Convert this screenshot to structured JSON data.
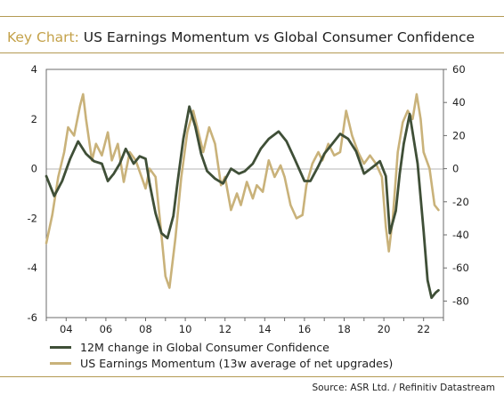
{
  "header": {
    "prefix": "Key Chart:",
    "title": "US Earnings Momentum vs Global Consumer Confidence"
  },
  "source": "Source: ASR Ltd. / Refinitiv Datastream",
  "colors": {
    "rule": "#b49a53",
    "title_prefix": "#c4a24a",
    "consumer_confidence": "#3f4f37",
    "earnings_momentum": "#c9b27a",
    "zero_line": "#b4b4b4"
  },
  "chart_data": {
    "type": "line",
    "x_range": [
      2003.0,
      2023.0
    ],
    "x_ticks": [
      "04",
      "06",
      "08",
      "10",
      "12",
      "14",
      "16",
      "18",
      "20",
      "22"
    ],
    "x_tick_values": [
      2004,
      2006,
      2008,
      2010,
      2012,
      2014,
      2016,
      2018,
      2020,
      2022
    ],
    "y_left": {
      "ylim": [
        -6,
        4
      ],
      "ticks": [
        "4",
        "2",
        "0",
        "-2",
        "-4",
        "-6"
      ],
      "tick_values": [
        4,
        2,
        0,
        -2,
        -4,
        -6
      ]
    },
    "y_right": {
      "ylim": [
        -90,
        60
      ],
      "ticks": [
        "60",
        "40",
        "20",
        "0",
        "-20",
        "-40",
        "-60",
        "-80"
      ],
      "tick_values": [
        60,
        40,
        20,
        0,
        -20,
        -40,
        -60,
        -80
      ]
    },
    "legend_placement": "bottom-left",
    "grid": false,
    "series": [
      {
        "name": "12M change in Global Consumer Confidence",
        "axis": "left",
        "color": "#3f4f37",
        "points": [
          [
            2003.0,
            -0.3
          ],
          [
            2003.4,
            -1.1
          ],
          [
            2003.8,
            -0.5
          ],
          [
            2004.2,
            0.4
          ],
          [
            2004.6,
            1.1
          ],
          [
            2005.0,
            0.6
          ],
          [
            2005.4,
            0.3
          ],
          [
            2005.8,
            0.2
          ],
          [
            2006.1,
            -0.5
          ],
          [
            2006.4,
            -0.2
          ],
          [
            2006.7,
            0.2
          ],
          [
            2007.0,
            0.8
          ],
          [
            2007.4,
            0.2
          ],
          [
            2007.7,
            0.5
          ],
          [
            2008.0,
            0.4
          ],
          [
            2008.2,
            -0.6
          ],
          [
            2008.5,
            -1.8
          ],
          [
            2008.8,
            -2.6
          ],
          [
            2009.1,
            -2.8
          ],
          [
            2009.4,
            -1.9
          ],
          [
            2009.6,
            -0.6
          ],
          [
            2009.9,
            1.2
          ],
          [
            2010.2,
            2.5
          ],
          [
            2010.5,
            1.7
          ],
          [
            2010.8,
            0.6
          ],
          [
            2011.1,
            -0.1
          ],
          [
            2011.5,
            -0.4
          ],
          [
            2011.9,
            -0.6
          ],
          [
            2012.3,
            0.0
          ],
          [
            2012.7,
            -0.2
          ],
          [
            2013.0,
            -0.1
          ],
          [
            2013.4,
            0.2
          ],
          [
            2013.8,
            0.8
          ],
          [
            2014.2,
            1.2
          ],
          [
            2014.7,
            1.5
          ],
          [
            2015.1,
            1.1
          ],
          [
            2015.5,
            0.4
          ],
          [
            2016.0,
            -0.5
          ],
          [
            2016.3,
            -0.5
          ],
          [
            2016.7,
            0.1
          ],
          [
            2017.0,
            0.6
          ],
          [
            2017.4,
            1.0
          ],
          [
            2017.8,
            1.4
          ],
          [
            2018.2,
            1.2
          ],
          [
            2018.6,
            0.7
          ],
          [
            2019.0,
            -0.2
          ],
          [
            2019.5,
            0.1
          ],
          [
            2019.8,
            0.3
          ],
          [
            2020.1,
            -0.3
          ],
          [
            2020.3,
            -2.6
          ],
          [
            2020.6,
            -1.7
          ],
          [
            2020.8,
            -0.2
          ],
          [
            2021.0,
            1.0
          ],
          [
            2021.3,
            2.2
          ],
          [
            2021.7,
            0.2
          ],
          [
            2022.0,
            -2.5
          ],
          [
            2022.2,
            -4.5
          ],
          [
            2022.4,
            -5.2
          ],
          [
            2022.6,
            -5.0
          ],
          [
            2022.75,
            -4.9
          ]
        ]
      },
      {
        "name": "US Earnings Momentum (13w average of net upgrades)",
        "axis": "right",
        "color": "#c9b27a",
        "points": [
          [
            2003.0,
            -45
          ],
          [
            2003.3,
            -28
          ],
          [
            2003.6,
            -5
          ],
          [
            2003.9,
            10
          ],
          [
            2004.1,
            25
          ],
          [
            2004.4,
            20
          ],
          [
            2004.7,
            38
          ],
          [
            2004.85,
            45
          ],
          [
            2005.0,
            30
          ],
          [
            2005.3,
            5
          ],
          [
            2005.5,
            15
          ],
          [
            2005.8,
            8
          ],
          [
            2006.1,
            22
          ],
          [
            2006.3,
            5
          ],
          [
            2006.6,
            15
          ],
          [
            2006.9,
            -8
          ],
          [
            2007.2,
            10
          ],
          [
            2007.5,
            5
          ],
          [
            2007.8,
            -5
          ],
          [
            2008.0,
            -12
          ],
          [
            2008.2,
            0
          ],
          [
            2008.5,
            -5
          ],
          [
            2008.8,
            -40
          ],
          [
            2009.0,
            -65
          ],
          [
            2009.2,
            -72
          ],
          [
            2009.5,
            -42
          ],
          [
            2009.8,
            -5
          ],
          [
            2010.1,
            22
          ],
          [
            2010.4,
            35
          ],
          [
            2010.6,
            25
          ],
          [
            2010.9,
            10
          ],
          [
            2011.2,
            25
          ],
          [
            2011.5,
            15
          ],
          [
            2011.8,
            -10
          ],
          [
            2012.0,
            -5
          ],
          [
            2012.3,
            -25
          ],
          [
            2012.6,
            -15
          ],
          [
            2012.8,
            -22
          ],
          [
            2013.1,
            -8
          ],
          [
            2013.4,
            -18
          ],
          [
            2013.6,
            -10
          ],
          [
            2013.9,
            -14
          ],
          [
            2014.2,
            5
          ],
          [
            2014.5,
            -5
          ],
          [
            2014.8,
            2
          ],
          [
            2015.0,
            -5
          ],
          [
            2015.3,
            -22
          ],
          [
            2015.6,
            -30
          ],
          [
            2015.9,
            -28
          ],
          [
            2016.1,
            -10
          ],
          [
            2016.4,
            3
          ],
          [
            2016.7,
            10
          ],
          [
            2016.9,
            5
          ],
          [
            2017.2,
            15
          ],
          [
            2017.5,
            8
          ],
          [
            2017.8,
            10
          ],
          [
            2018.1,
            35
          ],
          [
            2018.4,
            20
          ],
          [
            2018.7,
            10
          ],
          [
            2019.0,
            3
          ],
          [
            2019.3,
            8
          ],
          [
            2019.6,
            3
          ],
          [
            2019.9,
            -5
          ],
          [
            2020.1,
            -35
          ],
          [
            2020.25,
            -50
          ],
          [
            2020.45,
            -30
          ],
          [
            2020.7,
            10
          ],
          [
            2020.95,
            28
          ],
          [
            2021.2,
            35
          ],
          [
            2021.45,
            30
          ],
          [
            2021.65,
            45
          ],
          [
            2021.85,
            30
          ],
          [
            2022.0,
            10
          ],
          [
            2022.3,
            0
          ],
          [
            2022.55,
            -22
          ],
          [
            2022.75,
            -25
          ]
        ]
      }
    ]
  }
}
